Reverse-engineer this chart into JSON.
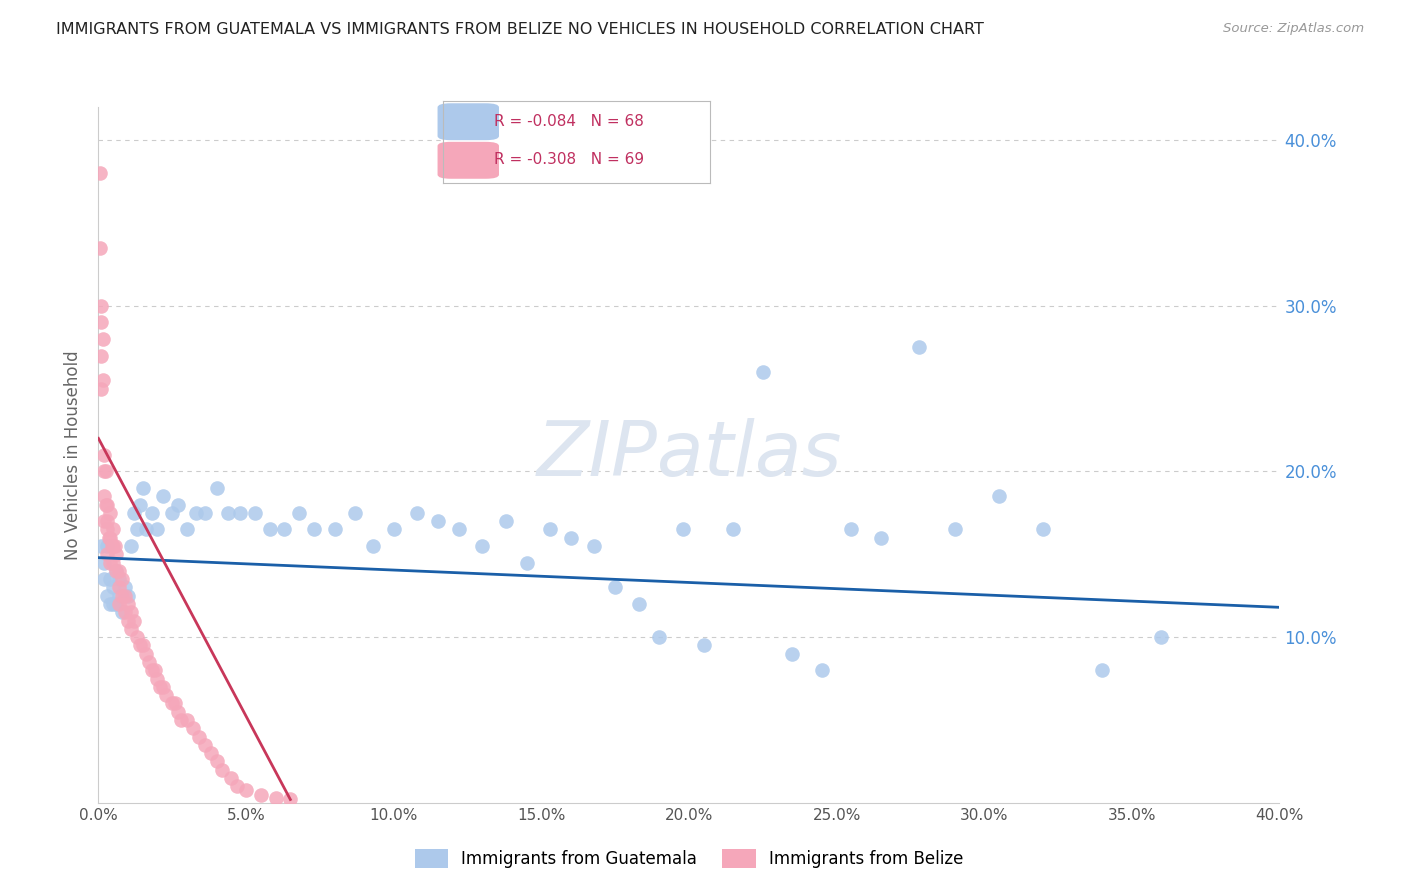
{
  "title": "IMMIGRANTS FROM GUATEMALA VS IMMIGRANTS FROM BELIZE NO VEHICLES IN HOUSEHOLD CORRELATION CHART",
  "source": "Source: ZipAtlas.com",
  "ylabel": "No Vehicles in Household",
  "xlim": [
    0.0,
    0.4
  ],
  "ylim": [
    0.0,
    0.42
  ],
  "yticks_right": [
    0.1,
    0.2,
    0.3,
    0.4
  ],
  "ytick_labels_right": [
    "10.0%",
    "20.0%",
    "30.0%",
    "40.0%"
  ],
  "xtick_vals": [
    0.0,
    0.05,
    0.1,
    0.15,
    0.2,
    0.25,
    0.3,
    0.35,
    0.4
  ],
  "xtick_labels": [
    "0.0%",
    "5.0%",
    "10.0%",
    "15.0%",
    "20.0%",
    "25.0%",
    "30.0%",
    "35.0%",
    "40.0%"
  ],
  "guatemala_color": "#adc9eb",
  "belize_color": "#f5a7ba",
  "guatemala_R": -0.084,
  "guatemala_N": 68,
  "belize_R": -0.308,
  "belize_N": 69,
  "line_guatemala_color": "#1a5fa8",
  "line_belize_color": "#c8375a",
  "watermark": "ZIPatlas",
  "watermark_color": "#dde5f0",
  "background_color": "#ffffff",
  "grid_color": "#cccccc",
  "title_color": "#222222",
  "axis_label_color": "#666666",
  "right_tick_color": "#4a90d9",
  "guatemala_x": [
    0.001,
    0.002,
    0.002,
    0.003,
    0.003,
    0.004,
    0.004,
    0.005,
    0.005,
    0.006,
    0.006,
    0.007,
    0.007,
    0.008,
    0.009,
    0.01,
    0.011,
    0.012,
    0.013,
    0.014,
    0.015,
    0.016,
    0.018,
    0.02,
    0.022,
    0.025,
    0.027,
    0.03,
    0.033,
    0.036,
    0.04,
    0.044,
    0.048,
    0.053,
    0.058,
    0.063,
    0.068,
    0.073,
    0.08,
    0.087,
    0.093,
    0.1,
    0.108,
    0.115,
    0.122,
    0.13,
    0.138,
    0.145,
    0.153,
    0.16,
    0.168,
    0.175,
    0.183,
    0.19,
    0.198,
    0.205,
    0.215,
    0.225,
    0.235,
    0.245,
    0.255,
    0.265,
    0.278,
    0.29,
    0.305,
    0.32,
    0.34,
    0.36
  ],
  "guatemala_y": [
    0.155,
    0.145,
    0.135,
    0.155,
    0.125,
    0.135,
    0.12,
    0.13,
    0.12,
    0.14,
    0.12,
    0.135,
    0.125,
    0.115,
    0.13,
    0.125,
    0.155,
    0.175,
    0.165,
    0.18,
    0.19,
    0.165,
    0.175,
    0.165,
    0.185,
    0.175,
    0.18,
    0.165,
    0.175,
    0.175,
    0.19,
    0.175,
    0.175,
    0.175,
    0.165,
    0.165,
    0.175,
    0.165,
    0.165,
    0.175,
    0.155,
    0.165,
    0.175,
    0.17,
    0.165,
    0.155,
    0.17,
    0.145,
    0.165,
    0.16,
    0.155,
    0.13,
    0.12,
    0.1,
    0.165,
    0.095,
    0.165,
    0.26,
    0.09,
    0.08,
    0.165,
    0.16,
    0.275,
    0.165,
    0.185,
    0.165,
    0.08,
    0.1
  ],
  "belize_x": [
    0.0005,
    0.0005,
    0.001,
    0.001,
    0.001,
    0.001,
    0.0015,
    0.0015,
    0.002,
    0.002,
    0.002,
    0.002,
    0.0025,
    0.0025,
    0.003,
    0.003,
    0.003,
    0.003,
    0.0035,
    0.004,
    0.004,
    0.004,
    0.0045,
    0.005,
    0.005,
    0.005,
    0.0055,
    0.006,
    0.006,
    0.007,
    0.007,
    0.007,
    0.008,
    0.008,
    0.009,
    0.009,
    0.01,
    0.01,
    0.011,
    0.011,
    0.012,
    0.013,
    0.014,
    0.015,
    0.016,
    0.017,
    0.018,
    0.019,
    0.02,
    0.021,
    0.022,
    0.023,
    0.025,
    0.026,
    0.027,
    0.028,
    0.03,
    0.032,
    0.034,
    0.036,
    0.038,
    0.04,
    0.042,
    0.045,
    0.047,
    0.05,
    0.055,
    0.06,
    0.065
  ],
  "belize_y": [
    0.38,
    0.335,
    0.3,
    0.29,
    0.27,
    0.25,
    0.28,
    0.255,
    0.21,
    0.2,
    0.185,
    0.17,
    0.2,
    0.18,
    0.18,
    0.17,
    0.165,
    0.15,
    0.16,
    0.175,
    0.16,
    0.145,
    0.155,
    0.165,
    0.155,
    0.145,
    0.155,
    0.15,
    0.14,
    0.14,
    0.13,
    0.12,
    0.135,
    0.125,
    0.125,
    0.115,
    0.12,
    0.11,
    0.115,
    0.105,
    0.11,
    0.1,
    0.095,
    0.095,
    0.09,
    0.085,
    0.08,
    0.08,
    0.075,
    0.07,
    0.07,
    0.065,
    0.06,
    0.06,
    0.055,
    0.05,
    0.05,
    0.045,
    0.04,
    0.035,
    0.03,
    0.025,
    0.02,
    0.015,
    0.01,
    0.008,
    0.005,
    0.003,
    0.002
  ],
  "guat_line_x": [
    0.0,
    0.4
  ],
  "guat_line_y": [
    0.148,
    0.118
  ],
  "belize_line_x": [
    0.0,
    0.065
  ],
  "belize_line_y": [
    0.22,
    0.002
  ]
}
